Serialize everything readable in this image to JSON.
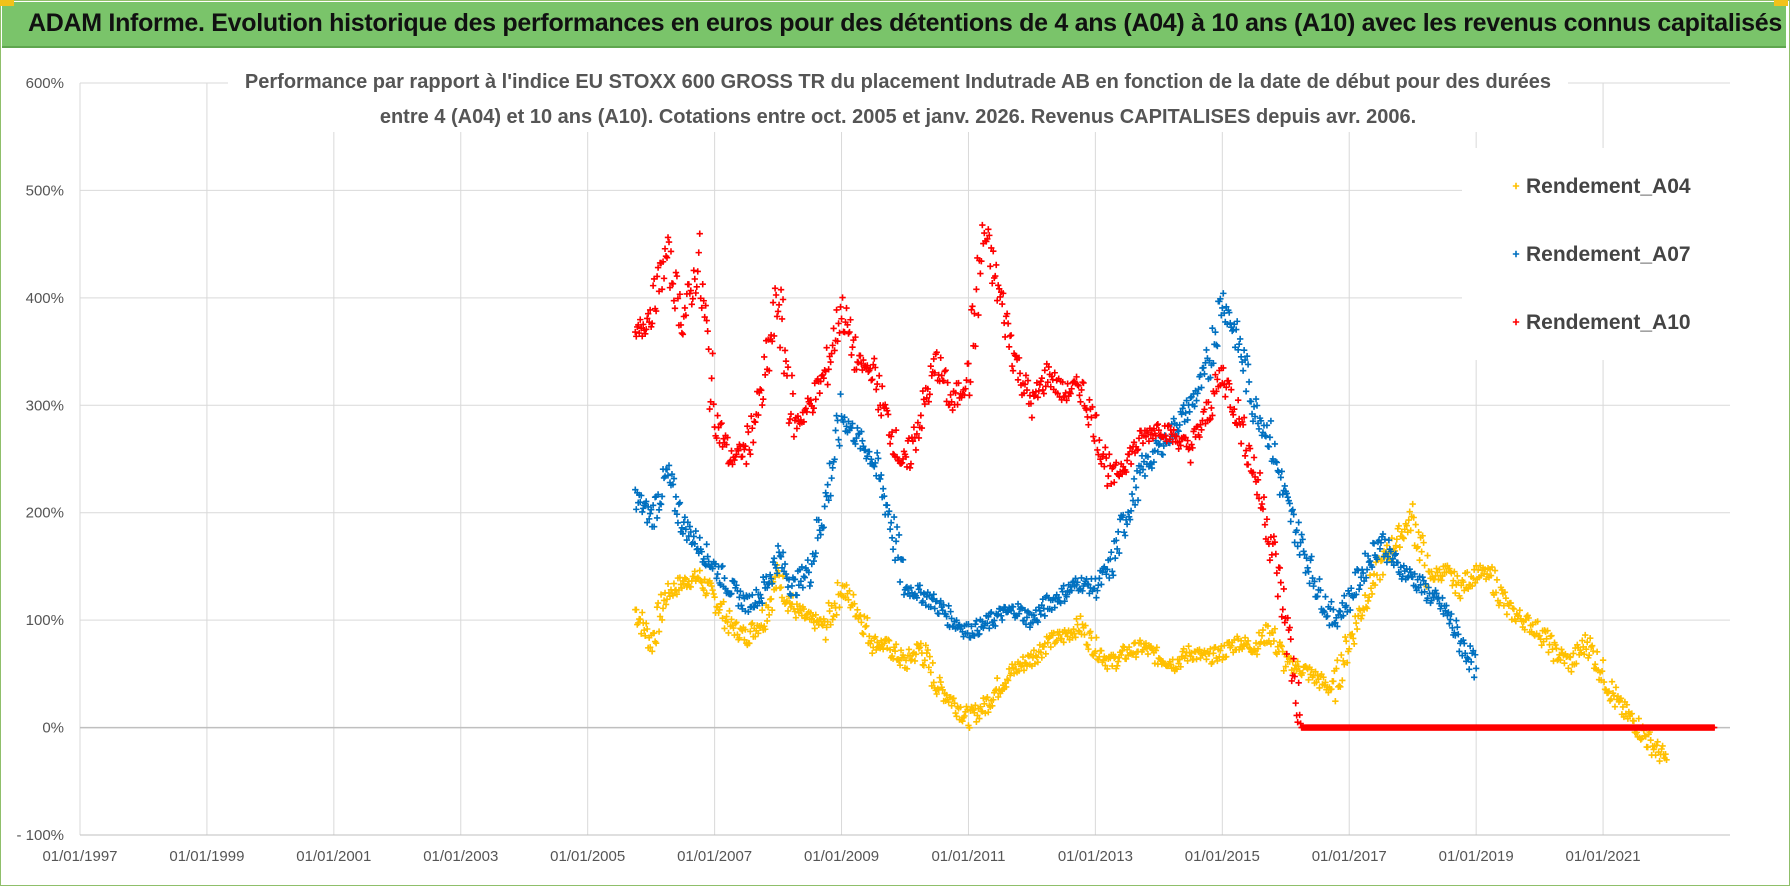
{
  "banner": {
    "title": "ADAM Informe. Evolution historique des performances en euros pour des détentions de 4 ans (A04) à 10 ans (A10) avec les revenus connus capitalisés"
  },
  "colors": {
    "banner_bg": "#7ac46a",
    "series_A04": "#ffc000",
    "series_A07": "#0070c0",
    "series_A10": "#ff0000",
    "grid": "#d9d9d9"
  },
  "chart_data": {
    "type": "scatter",
    "title_lines": [
      "Performance par rapport à l'indice EU STOXX 600 GROSS TR  du placement Indutrade AB en fonction de la date de début pour des durées",
      "entre 4 (A04) et 10 ans (A10).  Cotations entre oct. 2005 et janv. 2026.  Revenus CAPITALISES depuis avr. 2006."
    ],
    "xlabel": "",
    "ylabel": "",
    "xlim": [
      1997.0,
      2023.0
    ],
    "ylim": [
      -100,
      600
    ],
    "x_tick_labels": [
      "01/01/1997",
      "01/01/1999",
      "01/01/2001",
      "01/01/2003",
      "01/01/2005",
      "01/01/2007",
      "01/01/2009",
      "01/01/2011",
      "01/01/2013",
      "01/01/2015",
      "01/01/2017",
      "01/01/2019",
      "01/01/2021"
    ],
    "x_tick_values": [
      1997,
      1999,
      2001,
      2003,
      2005,
      2007,
      2009,
      2011,
      2013,
      2015,
      2017,
      2019,
      2021
    ],
    "y_tick_labels": [
      "- 100%",
      "0%",
      "100%",
      "200%",
      "300%",
      "400%",
      "500%",
      "600%"
    ],
    "y_tick_values": [
      -100,
      0,
      100,
      200,
      300,
      400,
      500,
      600
    ],
    "grid": true,
    "legend_position": "top-right",
    "marker": "+",
    "series": [
      {
        "name": "Rendement_A04",
        "color": "#ffc000",
        "x": [
          2005.75,
          2006.0,
          2006.25,
          2006.5,
          2006.75,
          2007.0,
          2007.25,
          2007.5,
          2007.75,
          2008.0,
          2008.25,
          2008.5,
          2008.75,
          2009.0,
          2009.25,
          2009.5,
          2009.75,
          2010.0,
          2010.25,
          2010.5,
          2010.75,
          2011.0,
          2011.25,
          2011.5,
          2011.75,
          2012.0,
          2012.25,
          2012.5,
          2012.75,
          2013.0,
          2013.25,
          2013.5,
          2013.75,
          2014.0,
          2014.25,
          2014.5,
          2014.75,
          2015.0,
          2015.25,
          2015.5,
          2015.75,
          2016.0,
          2016.25,
          2016.5,
          2016.75,
          2017.0,
          2017.25,
          2017.5,
          2017.75,
          2018.0,
          2018.25,
          2018.5,
          2018.75,
          2019.0,
          2019.25,
          2019.5,
          2019.75,
          2020.0,
          2020.25,
          2020.5,
          2020.75,
          2021.0,
          2021.25,
          2021.5,
          2021.75,
          2022.0
        ],
        "y": [
          110,
          80,
          125,
          135,
          140,
          120,
          95,
          85,
          100,
          140,
          110,
          100,
          95,
          130,
          110,
          80,
          75,
          60,
          75,
          40,
          25,
          8,
          20,
          40,
          55,
          65,
          80,
          85,
          95,
          75,
          60,
          70,
          75,
          65,
          60,
          70,
          65,
          70,
          80,
          75,
          90,
          60,
          55,
          45,
          35,
          80,
          120,
          150,
          175,
          195,
          140,
          145,
          130,
          145,
          140,
          110,
          100,
          90,
          70,
          60,
          80,
          50,
          20,
          5,
          -15,
          -30
        ]
      },
      {
        "name": "Rendement_A07",
        "color": "#0070c0",
        "x": [
          2005.75,
          2006.0,
          2006.25,
          2006.5,
          2006.75,
          2007.0,
          2007.25,
          2007.5,
          2007.75,
          2008.0,
          2008.25,
          2008.5,
          2008.75,
          2009.0,
          2009.25,
          2009.5,
          2009.75,
          2010.0,
          2010.25,
          2010.5,
          2010.75,
          2011.0,
          2011.25,
          2011.5,
          2011.75,
          2012.0,
          2012.25,
          2012.5,
          2012.75,
          2013.0,
          2013.25,
          2013.5,
          2013.75,
          2014.0,
          2014.25,
          2014.5,
          2014.75,
          2015.0,
          2015.25,
          2015.5,
          2015.75,
          2016.0,
          2016.25,
          2016.5,
          2016.75,
          2017.0,
          2017.25,
          2017.5,
          2017.75,
          2018.0,
          2018.25,
          2018.5,
          2018.75,
          2019.0
        ],
        "y": [
          215,
          195,
          235,
          190,
          170,
          150,
          130,
          115,
          125,
          160,
          130,
          150,
          210,
          290,
          270,
          250,
          200,
          130,
          125,
          115,
          100,
          90,
          95,
          105,
          110,
          100,
          115,
          125,
          135,
          130,
          150,
          200,
          240,
          260,
          280,
          300,
          330,
          400,
          360,
          300,
          270,
          210,
          170,
          130,
          100,
          120,
          150,
          175,
          150,
          140,
          125,
          110,
          80,
          55
        ]
      },
      {
        "name": "Rendement_A10",
        "color": "#ff0000",
        "x": [
          2005.75,
          2006.0,
          2006.25,
          2006.5,
          2006.75,
          2007.0,
          2007.25,
          2007.5,
          2007.75,
          2008.0,
          2008.25,
          2008.5,
          2008.75,
          2009.0,
          2009.25,
          2009.5,
          2009.75,
          2010.0,
          2010.25,
          2010.5,
          2010.75,
          2011.0,
          2011.25,
          2011.5,
          2011.75,
          2012.0,
          2012.25,
          2012.5,
          2012.75,
          2013.0,
          2013.25,
          2013.5,
          2013.75,
          2014.0,
          2014.25,
          2014.5,
          2014.75,
          2015.0,
          2015.25,
          2015.5,
          2015.75,
          2016.0,
          2016.25,
          2016.5,
          2016.75,
          2017.0,
          2017.25,
          2017.5,
          2017.75,
          2018.0,
          2018.25,
          2018.5,
          2018.75,
          2019.0,
          2019.25,
          2019.5,
          2019.75,
          2020.0,
          2020.25,
          2020.5,
          2020.75,
          2021.0,
          2021.25,
          2021.5,
          2021.75,
          2022.0,
          2022.25,
          2022.5,
          2022.75
        ],
        "y": [
          360,
          390,
          440,
          380,
          430,
          290,
          250,
          260,
          310,
          400,
          280,
          300,
          330,
          390,
          340,
          330,
          280,
          240,
          290,
          340,
          300,
          330,
          460,
          400,
          340,
          300,
          330,
          310,
          320,
          280,
          230,
          250,
          270,
          280,
          270,
          260,
          290,
          330,
          290,
          240,
          180,
          100,
          0,
          0,
          0,
          0,
          0,
          0,
          0,
          0,
          0,
          0,
          0,
          0,
          0,
          0,
          0,
          0,
          0,
          0,
          0,
          0,
          0,
          0,
          0,
          0,
          0,
          0,
          0
        ]
      }
    ]
  }
}
